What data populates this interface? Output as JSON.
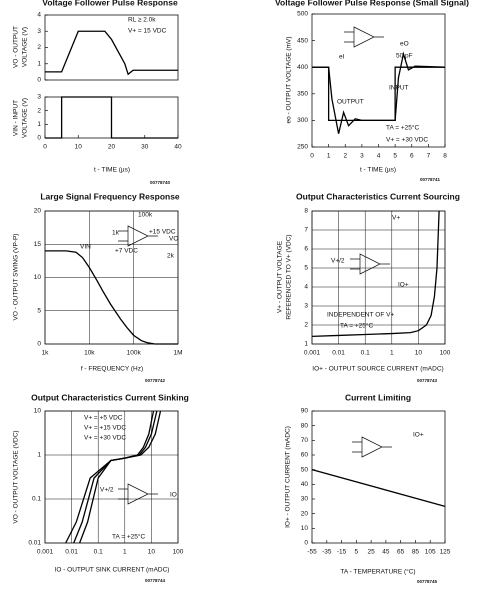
{
  "chart_data": [
    {
      "type": "line",
      "title": "Voltage Follower Pulse Response",
      "ylabel": [
        "VO - OUTPUT",
        "VOLTAGE (V)"
      ],
      "xlim": [
        0,
        40
      ],
      "ylim": [
        0,
        4
      ],
      "yticks": [
        0,
        1,
        2,
        3,
        4
      ],
      "grid": false,
      "annotations": [
        "RL ≥ 2.0k",
        "V+ = 15 VDC"
      ],
      "series": [
        {
          "color": "#000000",
          "x": [
            0,
            5,
            10,
            18,
            20,
            24,
            25,
            26.5,
            40
          ],
          "values": [
            0.5,
            0.5,
            3,
            3,
            2.5,
            1,
            0.35,
            0.6,
            0.6
          ]
        }
      ]
    },
    {
      "type": "line",
      "ylabel": [
        "VIN - INPUT",
        "VOLTAGE (V)"
      ],
      "xlabel": "t - TIME (µs)",
      "xlim": [
        0,
        40
      ],
      "xticks": [
        0,
        10,
        20,
        30,
        40
      ],
      "ylim": [
        0,
        3
      ],
      "yticks": [
        0,
        1,
        2,
        3
      ],
      "grid": false,
      "figure": "00778740",
      "series": [
        {
          "color": "#000000",
          "x": [
            0,
            5,
            5,
            20,
            20,
            40
          ],
          "values": [
            0,
            0,
            3,
            3,
            0,
            0
          ]
        }
      ]
    },
    {
      "type": "line",
      "title": "Voltage Follower Pulse Response (Small Signal)",
      "ylabel": [
        "eo - OUTPUT VOLTAGE (mV)"
      ],
      "xlabel": "t - TIME (µs)",
      "xlim": [
        0,
        8
      ],
      "xticks": [
        0,
        1,
        2,
        3,
        4,
        5,
        6,
        7,
        8
      ],
      "ylim": [
        250,
        500
      ],
      "yticks": [
        250,
        300,
        350,
        400,
        450,
        500
      ],
      "grid": false,
      "figure": "00778741",
      "annotations": [
        "eO",
        "eI",
        "50 pF",
        "TA = +25°C",
        "V+ = +30 VDC"
      ],
      "series": [
        {
          "name": "OUTPUT",
          "color": "#000000",
          "x": [
            0,
            1,
            1.2,
            1.6,
            1.9,
            2.2,
            2.6,
            3,
            5,
            5.2,
            5.5,
            5.8,
            6.2,
            8
          ],
          "values": [
            400,
            400,
            340,
            275,
            315,
            290,
            303,
            300,
            300,
            380,
            425,
            395,
            402,
            400
          ]
        },
        {
          "name": "INPUT",
          "color": "#000000",
          "x": [
            0,
            1,
            1,
            5,
            5,
            8
          ],
          "values": [
            400,
            400,
            300,
            300,
            400,
            400
          ]
        }
      ]
    },
    {
      "type": "line",
      "title": "Large Signal Frequency Response",
      "ylabel": [
        "VO - OUTPUT SWING (VP-P)"
      ],
      "xlabel": "f - FREQUENCY (Hz)",
      "log_x": true,
      "xlim": [
        1000,
        1000000
      ],
      "xticks": [
        {
          "value": 1000,
          "label": "1k"
        },
        {
          "value": 10000,
          "label": "10k"
        },
        {
          "value": 100000,
          "label": "100k"
        },
        {
          "value": 1000000,
          "label": "1M"
        }
      ],
      "ylim": [
        0,
        20
      ],
      "yticks": [
        0,
        5,
        10,
        15,
        20
      ],
      "grid": true,
      "figure": "00778742",
      "annotations": [
        "100k",
        "1k",
        "+15 VDC",
        "VO",
        "+7 VDC",
        "VIN",
        "2k"
      ],
      "series": [
        {
          "color": "#000000",
          "x": [
            1000,
            2000,
            3000,
            5000,
            7000,
            10000,
            15000,
            20000,
            30000,
            50000,
            70000,
            100000,
            150000,
            200000,
            300000,
            1000000
          ],
          "values": [
            14,
            14,
            14,
            13.8,
            13,
            11.5,
            9.5,
            8,
            6,
            3.8,
            2.5,
            1.3,
            0.5,
            0.2,
            0,
            0
          ]
        }
      ]
    },
    {
      "type": "line",
      "title": "Output Characteristics Current Sourcing",
      "ylabel": [
        "V+ - OUTPUT VOLTAGE",
        "REFERENCED TO V+ (VDC)"
      ],
      "xlabel": "IO+ - OUTPUT SOURCE CURRENT (mADC)",
      "log_x": true,
      "xlim": [
        0.001,
        100
      ],
      "xticks": [
        0.001,
        0.01,
        0.1,
        1,
        10,
        100
      ],
      "ylim": [
        1,
        8
      ],
      "yticks": [
        1,
        2,
        3,
        4,
        5,
        6,
        7,
        8
      ],
      "grid": true,
      "figure": "00778743",
      "annotations": [
        "V+",
        "V+/2",
        "IO+",
        "INDEPENDENT OF V+",
        "TA = +25°C"
      ],
      "series": [
        {
          "color": "#000000",
          "x": [
            0.001,
            0.01,
            0.1,
            1,
            5,
            10,
            20,
            30,
            40,
            50,
            60
          ],
          "values": [
            1.4,
            1.45,
            1.5,
            1.55,
            1.6,
            1.7,
            2,
            2.5,
            3.5,
            5,
            8
          ]
        }
      ]
    },
    {
      "type": "line",
      "title": "Output Characteristics Current Sinking",
      "ylabel": [
        "VO - OUTPUT VOLTAGE (VDC)"
      ],
      "xlabel": "IO - OUTPUT SINK CURRENT (mADC)",
      "log_x": true,
      "log_y": true,
      "xlim": [
        0.001,
        100
      ],
      "xticks": [
        0.001,
        0.01,
        0.1,
        1,
        10,
        100
      ],
      "ylim": [
        0.01,
        10
      ],
      "yticks": [
        0.01,
        0.1,
        1,
        10
      ],
      "grid": true,
      "figure": "00778744",
      "annotations": [
        "V+/2",
        "IO",
        "TA = +25°C"
      ],
      "series": [
        {
          "name": "V+ = +5 VDC",
          "color": "#000000",
          "x": [
            0.02,
            0.04,
            0.1,
            0.3,
            1,
            3,
            5,
            8,
            12
          ],
          "values": [
            0.01,
            0.03,
            0.3,
            0.75,
            0.85,
            1,
            1.5,
            3,
            10
          ]
        },
        {
          "name": "V+ = +15 VDC",
          "color": "#000000",
          "x": [
            0.012,
            0.025,
            0.07,
            0.3,
            1,
            3.5,
            6,
            10,
            16
          ],
          "values": [
            0.01,
            0.03,
            0.3,
            0.75,
            0.85,
            1,
            1.5,
            3,
            10
          ]
        },
        {
          "name": "V+ = +30 VDC",
          "color": "#000000",
          "x": [
            0.006,
            0.015,
            0.05,
            0.3,
            1,
            4,
            8,
            14,
            22
          ],
          "values": [
            0.01,
            0.03,
            0.3,
            0.75,
            0.85,
            1,
            1.5,
            3,
            10
          ]
        }
      ]
    },
    {
      "type": "line",
      "title": "Current Limiting",
      "ylabel": [
        "IO+ - OUTPUT CURRENT (mADC)"
      ],
      "xlabel": "TA - TEMPERATURE (°C)",
      "xlim": [
        -55,
        125
      ],
      "xticks": [
        -55,
        -35,
        -15,
        5,
        25,
        45,
        65,
        85,
        105,
        125
      ],
      "ylim": [
        0,
        90
      ],
      "yticks": [
        0,
        10,
        20,
        30,
        40,
        50,
        60,
        70,
        80,
        90
      ],
      "grid": false,
      "figure": "00778745",
      "annotations": [
        "IO+"
      ],
      "series": [
        {
          "color": "#000000",
          "x": [
            -55,
            125
          ],
          "values": [
            50,
            25
          ]
        }
      ]
    }
  ]
}
